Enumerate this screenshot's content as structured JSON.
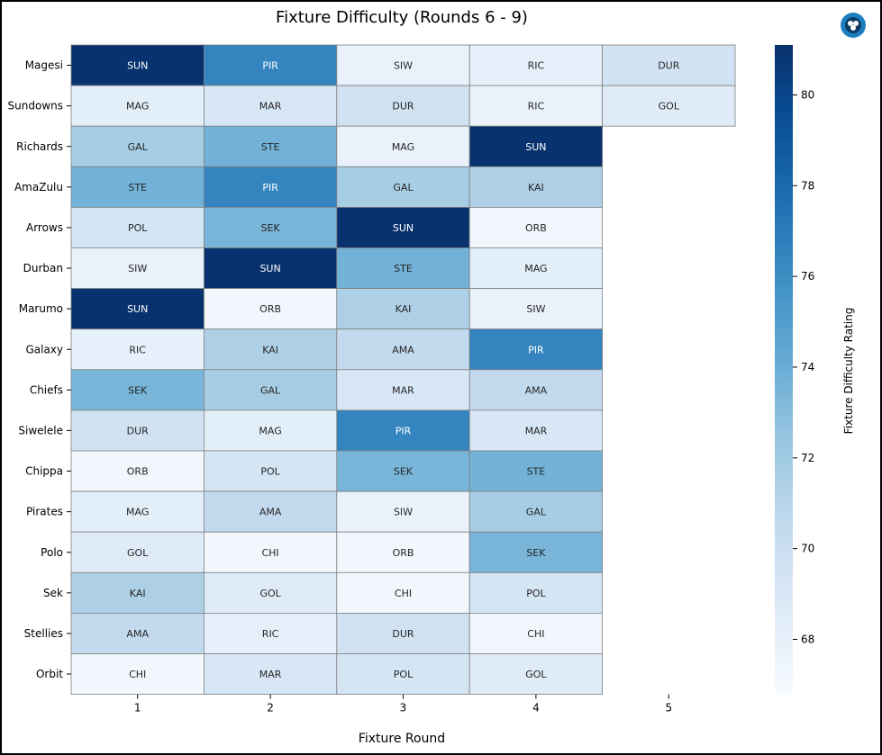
{
  "chart_data": {
    "type": "heatmap",
    "title": "Fixture Difficulty (Rounds 6 - 9)",
    "xlabel": "Fixture Round",
    "colorbar_label": "Fixture Difficulty Rating",
    "colormap": "Blues",
    "color_range": [
      66.8,
      81.1
    ],
    "colorbar_ticks": [
      68,
      70,
      72,
      74,
      76,
      78,
      80
    ],
    "colorbar_tick_labels": [
      "68",
      "70",
      "72",
      "74",
      "76",
      "78",
      "80"
    ],
    "x_ticks": [
      "1",
      "2",
      "3",
      "4",
      "5"
    ],
    "grid": true,
    "rows": [
      {
        "team": "Magesi",
        "cells": [
          [
            "SUN",
            81
          ],
          [
            "PIR",
            76.5
          ],
          [
            "SIW",
            67.8
          ],
          [
            "RIC",
            68
          ],
          [
            "DUR",
            69.5
          ]
        ]
      },
      {
        "team": "Sundowns",
        "cells": [
          [
            "MAG",
            68.3
          ],
          [
            "MAR",
            69
          ],
          [
            "DUR",
            69.6
          ],
          [
            "RIC",
            67.8
          ],
          [
            "GOL",
            68.5
          ]
        ]
      },
      {
        "team": "Richards",
        "cells": [
          [
            "GAL",
            71.8
          ],
          [
            "STE",
            73.7
          ],
          [
            "MAG",
            67.8
          ],
          [
            "SUN",
            81
          ],
          null
        ]
      },
      {
        "team": "AmaZulu",
        "cells": [
          [
            "STE",
            73.7
          ],
          [
            "PIR",
            76.5
          ],
          [
            "GAL",
            71.8
          ],
          [
            "KAI",
            71.5
          ],
          null
        ]
      },
      {
        "team": "Arrows",
        "cells": [
          [
            "POL",
            69.3
          ],
          [
            "SEK",
            73.5
          ],
          [
            "SUN",
            81
          ],
          [
            "ORB",
            67.2
          ],
          null
        ]
      },
      {
        "team": "Durban",
        "cells": [
          [
            "SIW",
            67.8
          ],
          [
            "SUN",
            81
          ],
          [
            "STE",
            73.7
          ],
          [
            "MAG",
            68.3
          ],
          null
        ]
      },
      {
        "team": "Marumo",
        "cells": [
          [
            "SUN",
            81
          ],
          [
            "ORB",
            67.2
          ],
          [
            "KAI",
            71.5
          ],
          [
            "SIW",
            67.8
          ],
          null
        ]
      },
      {
        "team": "Galaxy",
        "cells": [
          [
            "RIC",
            68
          ],
          [
            "KAI",
            71.5
          ],
          [
            "AMA",
            70.5
          ],
          [
            "PIR",
            76.5
          ],
          null
        ]
      },
      {
        "team": "Chiefs",
        "cells": [
          [
            "SEK",
            73.5
          ],
          [
            "GAL",
            71.8
          ],
          [
            "MAR",
            69
          ],
          [
            "AMA",
            70.5
          ],
          null
        ]
      },
      {
        "team": "Siwelele",
        "cells": [
          [
            "DUR",
            69.6
          ],
          [
            "MAG",
            68.3
          ],
          [
            "PIR",
            76.5
          ],
          [
            "MAR",
            69
          ],
          null
        ]
      },
      {
        "team": "Chippa",
        "cells": [
          [
            "ORB",
            67.2
          ],
          [
            "POL",
            69.3
          ],
          [
            "SEK",
            73.5
          ],
          [
            "STE",
            73.7
          ],
          null
        ]
      },
      {
        "team": "Pirates",
        "cells": [
          [
            "MAG",
            68.3
          ],
          [
            "AMA",
            70.5
          ],
          [
            "SIW",
            67.8
          ],
          [
            "GAL",
            71.8
          ],
          null
        ]
      },
      {
        "team": "Polo",
        "cells": [
          [
            "GOL",
            68.5
          ],
          [
            "CHI",
            67.2
          ],
          [
            "ORB",
            67.2
          ],
          [
            "SEK",
            73.5
          ],
          null
        ]
      },
      {
        "team": "Sek",
        "cells": [
          [
            "KAI",
            71.5
          ],
          [
            "GOL",
            68.5
          ],
          [
            "CHI",
            67.2
          ],
          [
            "POL",
            69.3
          ],
          null
        ]
      },
      {
        "team": "Stellies",
        "cells": [
          [
            "AMA",
            70.5
          ],
          [
            "RIC",
            68
          ],
          [
            "DUR",
            69.6
          ],
          [
            "CHI",
            67.2
          ],
          null
        ]
      },
      {
        "team": "Orbit",
        "cells": [
          [
            "CHI",
            67.2
          ],
          [
            "MAR",
            69
          ],
          [
            "POL",
            69.3
          ],
          [
            "GOL",
            68.5
          ],
          null
        ]
      }
    ]
  },
  "logo": {
    "name": "brand-logo-icon",
    "color": "#1e7fc0"
  }
}
